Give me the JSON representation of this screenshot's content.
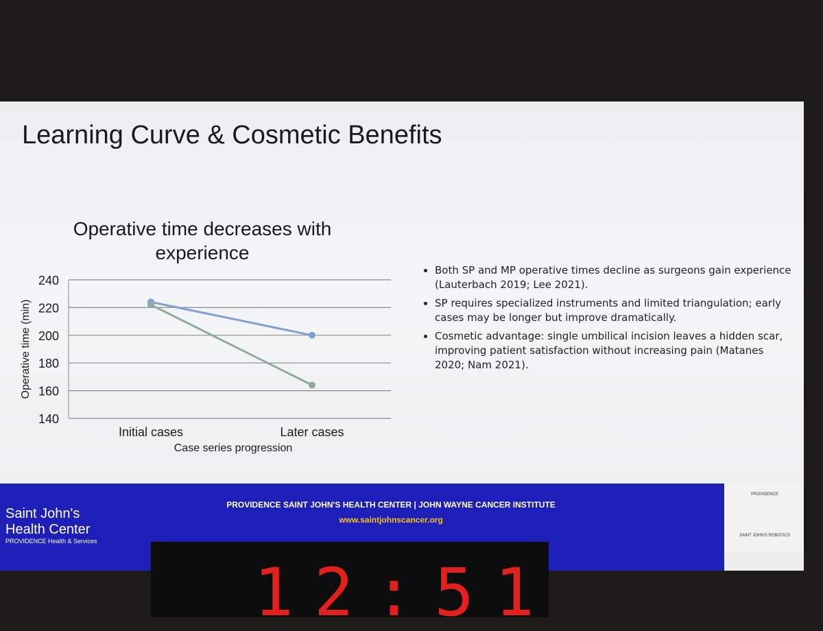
{
  "slide_title": "Learning Curve & Cosmetic Benefits",
  "chart_data": {
    "type": "line",
    "title": "Operative time decreases with experience",
    "categories": [
      "Initial cases",
      "Later cases"
    ],
    "series": [
      {
        "color": "#7f9fd6",
        "values": [
          224,
          200
        ]
      },
      {
        "color": "#8eaba0",
        "values": [
          222,
          164
        ]
      }
    ],
    "ylim": [
      140,
      240
    ],
    "yticks": [
      140,
      160,
      180,
      200,
      220,
      240
    ],
    "grid": true,
    "y_label": "Operative time (min)",
    "x_label": "Case series progression"
  },
  "bullets": [
    "Both SP and MP operative times decline as surgeons gain experience (Lauterbach 2019; Lee 2021).",
    "SP requires specialized instruments and limited triangulation; early cases may be longer but improve dramatically.",
    "Cosmetic advantage: single umbilical incision leaves a hidden scar, improving patient satisfaction without increasing pain (Matanes 2020; Nam 2021)."
  ],
  "footer": {
    "line": "PROVIDENCE SAINT JOHN'S HEALTH CENTER | JOHN WAYNE CANCER INSTITUTE",
    "url": "www.saintjohnscancer.org"
  },
  "logo_left": {
    "name": "Saint John's Health Center",
    "sub": "PROVIDENCE Health & Services"
  },
  "logo_right": {
    "top": "PROVIDENCE",
    "bottom": "SAINT JOHN'S ROBOTICS"
  },
  "clock": "12:51"
}
